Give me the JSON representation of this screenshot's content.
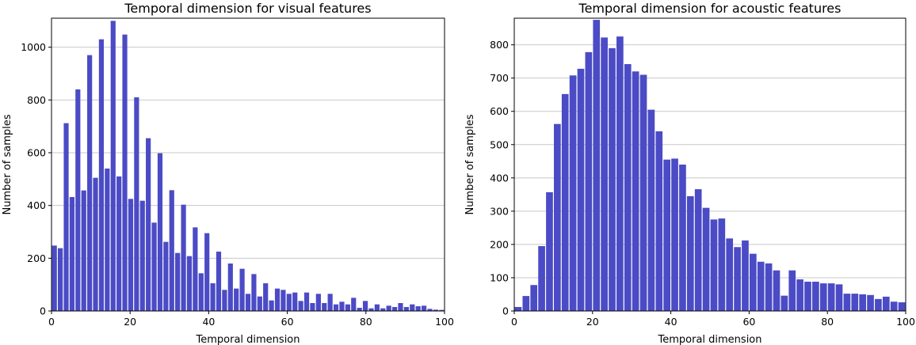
{
  "chart_data": [
    {
      "type": "histogram",
      "title": "Temporal dimension for visual features",
      "xlabel": "Temporal dimension",
      "ylabel": "Number of samples",
      "color": "#4b4bc6",
      "grid": true,
      "bins": [
        0,
        1.49,
        2.99,
        4.48,
        5.97,
        7.46,
        8.96,
        10.45,
        11.94,
        13.43,
        14.93,
        16.42,
        17.91,
        19.4,
        20.9,
        22.39,
        23.88,
        25.37,
        26.87,
        28.36,
        29.85,
        31.34,
        32.84,
        34.33,
        35.82,
        37.31,
        38.81,
        40.3,
        41.79,
        43.28,
        44.78,
        46.27,
        47.76,
        49.25,
        50.75,
        52.24,
        53.73,
        55.22,
        56.72,
        58.21,
        59.7,
        61.19,
        62.69,
        64.18,
        65.67,
        67.16,
        68.66,
        70.15,
        71.64,
        73.13,
        74.63,
        76.12,
        77.61,
        79.1,
        80.6,
        82.09,
        83.58,
        85.07,
        86.57,
        88.06,
        89.55,
        91.04,
        92.54,
        94.03,
        95.52,
        97.01,
        98.51,
        100
      ],
      "values": [
        248,
        238,
        712,
        432,
        840,
        457,
        970,
        505,
        1030,
        540,
        1100,
        510,
        1048,
        425,
        810,
        418,
        655,
        335,
        598,
        262,
        458,
        220,
        403,
        208,
        317,
        143,
        295,
        105,
        225,
        80,
        180,
        85,
        160,
        65,
        140,
        55,
        105,
        40,
        85,
        80,
        65,
        70,
        38,
        70,
        30,
        65,
        30,
        65,
        25,
        35,
        25,
        50,
        12,
        38,
        10,
        25,
        10,
        20,
        15,
        30,
        15,
        25,
        18,
        20,
        8,
        5,
        4
      ],
      "xlim": [
        0,
        100
      ],
      "xticks": [
        0,
        20,
        40,
        60,
        80,
        100
      ],
      "ylim": [
        0,
        1110
      ],
      "yticks": [
        0,
        200,
        400,
        600,
        800,
        1000
      ]
    },
    {
      "type": "histogram",
      "title": "Temporal dimension for acoustic features",
      "xlabel": "Temporal dimension",
      "ylabel": "Number of samples",
      "color": "#4b4bc6",
      "grid": true,
      "bins": [
        0,
        2,
        4,
        6,
        8,
        10,
        12,
        14,
        16,
        18,
        20,
        22,
        24,
        26,
        28,
        30,
        32,
        34,
        36,
        38,
        40,
        42,
        44,
        46,
        48,
        50,
        52,
        54,
        56,
        58,
        60,
        62,
        64,
        66,
        68,
        70,
        72,
        74,
        76,
        78,
        80,
        82,
        84,
        86,
        88,
        90,
        92,
        94,
        96,
        98,
        100
      ],
      "values": [
        12,
        45,
        78,
        195,
        357,
        562,
        652,
        708,
        728,
        778,
        875,
        822,
        790,
        825,
        742,
        720,
        710,
        605,
        540,
        455,
        458,
        440,
        345,
        366,
        310,
        275,
        278,
        218,
        192,
        212,
        172,
        148,
        143,
        122,
        46,
        122,
        95,
        88,
        88,
        83,
        83,
        80,
        52,
        52,
        50,
        48,
        36,
        43,
        28,
        26
      ],
      "xlim": [
        0,
        100
      ],
      "xticks": [
        0,
        20,
        40,
        60,
        80,
        100
      ],
      "ylim": [
        0,
        880
      ],
      "yticks": [
        0,
        100,
        200,
        300,
        400,
        500,
        600,
        700,
        800
      ]
    }
  ]
}
